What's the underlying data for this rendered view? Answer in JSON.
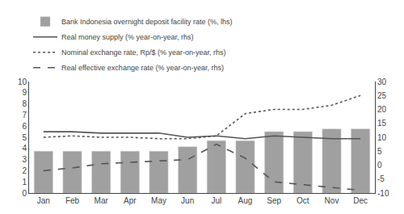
{
  "chart_data": {
    "type": "bar",
    "categories": [
      "Jan",
      "Feb",
      "Mar",
      "Apr",
      "May",
      "Jun",
      "Jul",
      "Aug",
      "Sep",
      "Oct",
      "Nov",
      "Dec"
    ],
    "series": [
      {
        "name": "Bank Indonesia overnight deposit facility rate (%, lhs)",
        "type": "bar",
        "color": "#a0a0a0",
        "values": [
          3.75,
          3.75,
          3.75,
          3.75,
          3.75,
          4.15,
          4.7,
          4.7,
          5.5,
          5.5,
          5.75,
          5.75
        ]
      },
      {
        "name": "Real money supply (% year-on-year, rhs)",
        "type": "line",
        "color": "#555555",
        "line_style": "solid",
        "axis": "y2",
        "values": [
          12.0,
          12.0,
          11.5,
          11.5,
          11.5,
          10.0,
          10.5,
          9.5,
          10.5,
          10.0,
          9.5,
          9.5
        ]
      },
      {
        "name": "Nominal exchange rate, Rp/$ (% year-on-year, rhs)",
        "type": "line",
        "color": "#555555",
        "line_style": "dotted",
        "axis": "y2",
        "values": [
          10.0,
          10.5,
          10.0,
          10.0,
          9.5,
          9.5,
          10.5,
          18.5,
          20.0,
          20.0,
          21.5,
          25.0
        ]
      },
      {
        "name": "Real effective exchange rate (% year-on-year, rhs)",
        "type": "line",
        "color": "#555555",
        "line_style": "dashed",
        "axis": "y2",
        "values": [
          -2.0,
          -1.0,
          0.5,
          1.0,
          1.5,
          2.0,
          7.5,
          2.5,
          -6.0,
          -7.0,
          -8.0,
          -9.0
        ]
      }
    ],
    "ylim": [
      0,
      10
    ],
    "yticks": [
      0,
      1,
      2,
      3,
      4,
      5,
      6,
      7,
      8,
      9,
      10
    ],
    "y2lim": [
      -10,
      30
    ],
    "y2ticks": [
      -10,
      -5,
      0,
      5,
      10,
      15,
      20,
      25,
      30
    ],
    "grid": false,
    "legend": "upper left"
  }
}
